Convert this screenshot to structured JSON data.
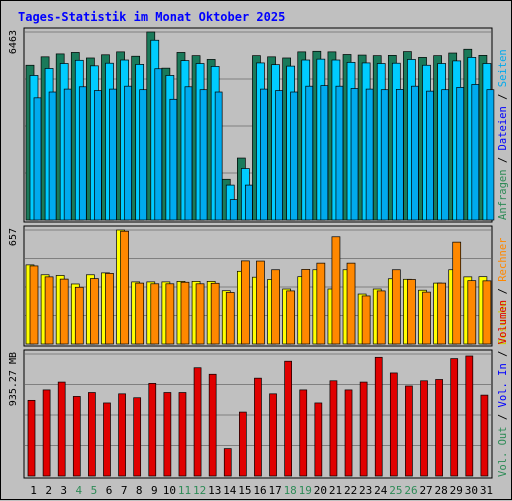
{
  "title": "Tages-Statistik im Monat Oktober 2025",
  "colors": {
    "background": "#c0c0c0",
    "plot_bg": "#c0c0c0",
    "title": "#0000ff",
    "weekday": "#000000",
    "weekend": "#2e8b57",
    "grid": "#808080",
    "anfragen": "#1a7a5a",
    "dateien": "#00ccff",
    "seiten": "#00aaee",
    "besuche": "#ffff00",
    "rechner": "#ff8800",
    "volumen_in": "#e00000",
    "vol_in_label": "#0000ff",
    "vol_out_label": "#2e8b57",
    "volumen_label": "#e00000"
  },
  "right_labels": {
    "top": [
      {
        "text": "Anfragen",
        "color": "#2e8b57"
      },
      {
        "text": " / ",
        "color": "#000000"
      },
      {
        "text": "Dateien",
        "color": "#0000ff"
      },
      {
        "text": " / ",
        "color": "#000000"
      },
      {
        "text": "Seiten",
        "color": "#00aaee"
      }
    ],
    "middle": [
      {
        "text": "Besuche",
        "color": "#cccc00"
      },
      {
        "text": " / ",
        "color": "#000000"
      },
      {
        "text": "Rechner",
        "color": "#ff8800"
      }
    ],
    "bottom": [
      {
        "text": "Vol. Out",
        "color": "#2e8b57"
      },
      {
        "text": " / ",
        "color": "#000000"
      },
      {
        "text": "Vol. In",
        "color": "#0000ff"
      },
      {
        "text": " / ",
        "color": "#000000"
      },
      {
        "text": "Volumen",
        "color": "#e00000"
      }
    ]
  },
  "chart_data": {
    "type": "bar",
    "categories": [
      "1",
      "2",
      "3",
      "4",
      "5",
      "6",
      "7",
      "8",
      "9",
      "10",
      "11",
      "12",
      "13",
      "14",
      "15",
      "16",
      "17",
      "18",
      "19",
      "20",
      "21",
      "22",
      "23",
      "24",
      "25",
      "26",
      "27",
      "28",
      "29",
      "30",
      "31"
    ],
    "weekend_days": [
      "4",
      "5",
      "11",
      "12",
      "18",
      "19",
      "25",
      "26"
    ],
    "panels": [
      {
        "id": "requests",
        "ymax_label": "6463",
        "ymax": 6463,
        "series": [
          {
            "name": "Anfragen",
            "values": [
              5320,
              5610,
              5710,
              5760,
              5570,
              5680,
              5780,
              5630,
              6463,
              5220,
              5760,
              5650,
              5520,
              1400,
              2130,
              5650,
              5610,
              5570,
              5780,
              5800,
              5780,
              5690,
              5670,
              5650,
              5660,
              5790,
              5590,
              5650,
              5740,
              5870,
              5660
            ]
          },
          {
            "name": "Dateien",
            "values": [
              4970,
              5210,
              5380,
              5490,
              5300,
              5390,
              5500,
              5350,
              6180,
              4970,
              5480,
              5380,
              5280,
              1200,
              1770,
              5400,
              5340,
              5290,
              5500,
              5530,
              5500,
              5420,
              5400,
              5380,
              5390,
              5520,
              5320,
              5380,
              5470,
              5590,
              5380
            ]
          },
          {
            "name": "Seiten",
            "values": [
              4200,
              4400,
              4500,
              4580,
              4450,
              4500,
              4600,
              4480,
              5200,
              4150,
              4580,
              4480,
              4400,
              700,
              1200,
              4500,
              4450,
              4400,
              4600,
              4620,
              4600,
              4520,
              4500,
              4480,
              4490,
              4600,
              4430,
              4480,
              4560,
              4660,
              4480
            ]
          }
        ]
      },
      {
        "id": "visits",
        "ymax_label": "657",
        "ymax": 657,
        "series": [
          {
            "name": "Besuche",
            "values": [
              456,
              399,
              395,
              346,
              399,
              410,
              657,
              358,
              358,
              358,
              361,
              361,
              361,
              307,
              419,
              385,
              372,
              317,
              388,
              428,
              317,
              428,
              288,
              317,
              376,
              373,
              310,
              351,
              428,
              387,
              388
            ]
          },
          {
            "name": "Rechner",
            "values": [
              450,
              387,
              374,
              327,
              377,
              407,
              650,
              351,
              347,
              347,
              356,
              347,
              350,
              297,
              479,
              478,
              428,
              306,
              430,
              466,
              618,
              466,
              277,
              306,
              428,
              372,
              299,
              351,
              587,
              365,
              364
            ]
          }
        ]
      },
      {
        "id": "volume",
        "ymax_label": "935.27 MB",
        "ymax": 935.27,
        "series": [
          {
            "name": "Volumen",
            "values": [
              580,
              660,
              720,
              610,
              640,
              560,
              630,
              600,
              710,
              640,
              640,
              830,
              780,
              210,
              490,
              750,
              630,
              880,
              660,
              560,
              730,
              660,
              720,
              910,
              790,
              690,
              730,
              740,
              900,
              920,
              620
            ]
          }
        ]
      }
    ]
  }
}
